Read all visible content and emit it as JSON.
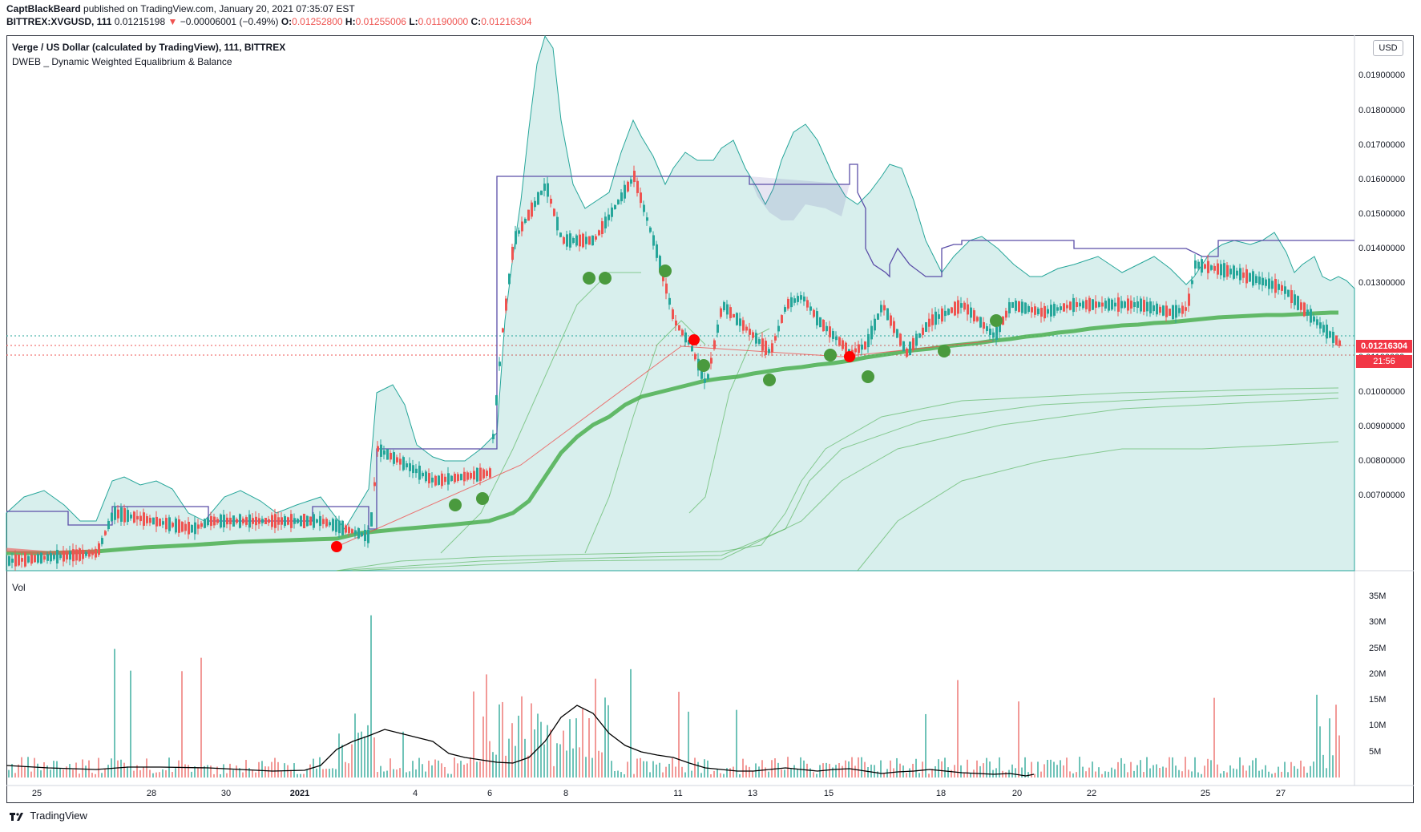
{
  "header": {
    "author": "CaptBlackBeard",
    "published": "published on TradingView.com, January 20, 2021 07:35:07 EST",
    "symbol": "BITTREX:XVGUSD, 111",
    "last": "0.01215198",
    "change_arrow": "▼",
    "change": "−0.00006001 (−0.49%)",
    "o_label": "O:",
    "o_value": "0.01252800",
    "h_label": "H:",
    "h_value": "0.01255006",
    "l_label": "L:",
    "l_value": "0.01190000",
    "c_label": "C:",
    "c_value": "0.01216304"
  },
  "chart": {
    "title": "Verge / US Dollar (calculated by TradingView), 111, BITTREX",
    "indicator": "DWEB _ Dynamic Weighted Equalibrium & Balance",
    "currency_button": "USD",
    "price_tag": "0.01216304",
    "countdown_tag": "21:56",
    "volume_label": "Vol",
    "price_axis": [
      "0.01900000",
      "0.01800000",
      "0.01700000",
      "0.01600000",
      "0.01500000",
      "0.01400000",
      "0.01300000",
      "0.01100000",
      "0.01000000",
      "0.00900000",
      "0.00800000",
      "0.00700000"
    ],
    "volume_axis": [
      "35M",
      "30M",
      "25M",
      "20M",
      "15M",
      "10M",
      "5M"
    ],
    "time_axis": [
      "25",
      "28",
      "30",
      "2021",
      "4",
      "6",
      "8",
      "11",
      "13",
      "15",
      "18",
      "20",
      "22",
      "25",
      "27"
    ]
  },
  "footer": {
    "brand": "TradingView"
  },
  "colors": {
    "up": "#26a69a",
    "down": "#ef5350",
    "ema": "#4caf50",
    "purple": "#5b4ea8",
    "tag_red": "#f23645"
  }
}
